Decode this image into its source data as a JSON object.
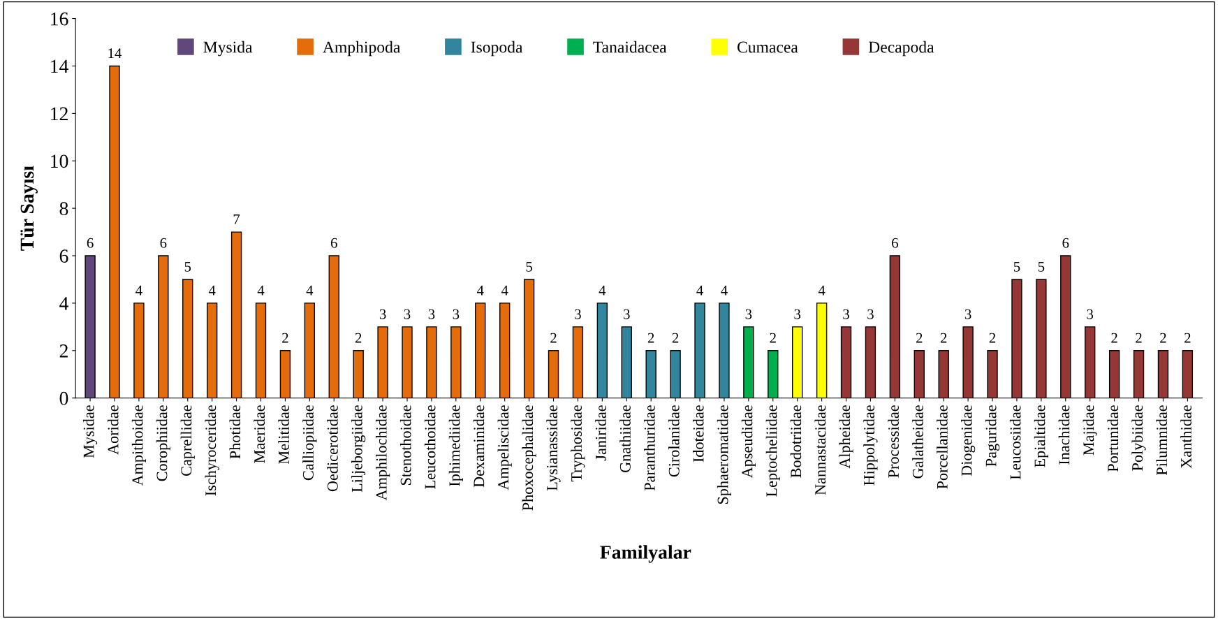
{
  "chart_data": {
    "type": "bar",
    "xlabel": "Familyalar",
    "ylabel": "Tür Sayısı",
    "categories": [
      "Mysidae",
      "Aoridae",
      "Ampithoidae",
      "Corophiidae",
      "Caprellidae",
      "Ischyroceridae",
      "Photidae",
      "Maeridae",
      "Melitidae",
      "Calliopiidae",
      "Oedicerotidae",
      "Liljeborgiidae",
      "Amphilochidae",
      "Stenothoidae",
      "Leucothoidae",
      "Iphimediidae",
      "Dexaminidae",
      "Ampeliscidae",
      "Phoxocephalidae",
      "Lysianassidae",
      "Tryphosidae",
      "Janiridae",
      "Gnathiidae",
      "Paranthuridae",
      "Cirolanidae",
      "Idoteidae",
      "Sphaeromatidae",
      "Apseudidae",
      "Leptocheliidae",
      "Bodotriidae",
      "Nannastacidae",
      "Alpheidae",
      "Hippolytidae",
      "Processidae",
      "Galatheidae",
      "Porcellanidae",
      "Diogenidae",
      "Paguridae",
      "Leucosiidae",
      "Epialtidae",
      "Inachidae",
      "Majidae",
      "Portunidae",
      "Polybiidae",
      "Pilumnidae",
      "Xanthidae"
    ],
    "series": [
      {
        "name": "Mysida",
        "color": "#60497a",
        "values": [
          6,
          null,
          null,
          null,
          null,
          null,
          null,
          null,
          null,
          null,
          null,
          null,
          null,
          null,
          null,
          null,
          null,
          null,
          null,
          null,
          null,
          null,
          null,
          null,
          null,
          null,
          null,
          null,
          null,
          null,
          null,
          null,
          null,
          null,
          null,
          null,
          null,
          null,
          null,
          null,
          null,
          null,
          null,
          null,
          null,
          null
        ]
      },
      {
        "name": "Amphipoda",
        "color": "#e46c0a",
        "values": [
          null,
          14,
          4,
          6,
          5,
          4,
          7,
          4,
          2,
          4,
          6,
          2,
          3,
          3,
          3,
          3,
          4,
          4,
          5,
          2,
          3,
          null,
          null,
          null,
          null,
          null,
          null,
          null,
          null,
          null,
          null,
          null,
          null,
          null,
          null,
          null,
          null,
          null,
          null,
          null,
          null,
          null,
          null,
          null,
          null,
          null
        ]
      },
      {
        "name": "Isopoda",
        "color": "#31859c",
        "values": [
          null,
          null,
          null,
          null,
          null,
          null,
          null,
          null,
          null,
          null,
          null,
          null,
          null,
          null,
          null,
          null,
          null,
          null,
          null,
          null,
          null,
          4,
          3,
          2,
          2,
          4,
          4,
          null,
          null,
          null,
          null,
          null,
          null,
          null,
          null,
          null,
          null,
          null,
          null,
          null,
          null,
          null,
          null,
          null,
          null,
          null
        ]
      },
      {
        "name": "Tanaidacea",
        "color": "#00b050",
        "values": [
          null,
          null,
          null,
          null,
          null,
          null,
          null,
          null,
          null,
          null,
          null,
          null,
          null,
          null,
          null,
          null,
          null,
          null,
          null,
          null,
          null,
          null,
          null,
          null,
          null,
          null,
          null,
          3,
          2,
          null,
          null,
          null,
          null,
          null,
          null,
          null,
          null,
          null,
          null,
          null,
          null,
          null,
          null,
          null,
          null,
          null
        ]
      },
      {
        "name": "Cumacea",
        "color": "#ffff00",
        "values": [
          null,
          null,
          null,
          null,
          null,
          null,
          null,
          null,
          null,
          null,
          null,
          null,
          null,
          null,
          null,
          null,
          null,
          null,
          null,
          null,
          null,
          null,
          null,
          null,
          null,
          null,
          null,
          null,
          null,
          3,
          4,
          null,
          null,
          null,
          null,
          null,
          null,
          null,
          null,
          null,
          null,
          null,
          null,
          null,
          null,
          null
        ]
      },
      {
        "name": "Decapoda",
        "color": "#953735",
        "values": [
          null,
          null,
          null,
          null,
          null,
          null,
          null,
          null,
          null,
          null,
          null,
          null,
          null,
          null,
          null,
          null,
          null,
          null,
          null,
          null,
          null,
          null,
          null,
          null,
          null,
          null,
          null,
          null,
          null,
          null,
          null,
          3,
          3,
          6,
          2,
          2,
          3,
          2,
          5,
          5,
          6,
          3,
          2,
          2,
          2,
          2
        ]
      }
    ],
    "ylim": [
      0,
      16
    ],
    "yticks": [
      0,
      2,
      4,
      6,
      8,
      10,
      12,
      14,
      16
    ],
    "data_labels": true,
    "legend": "top left",
    "grid": false
  }
}
